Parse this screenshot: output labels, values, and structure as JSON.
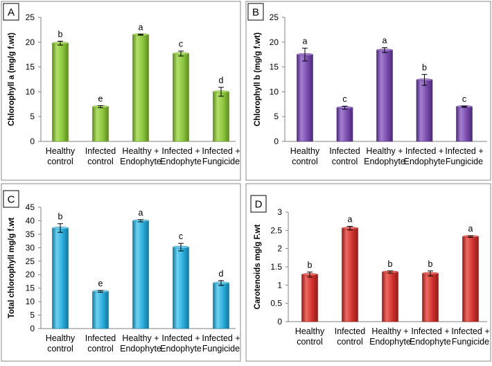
{
  "chart_data": [
    {
      "type": "bar",
      "panel_label": "A",
      "ylabel": "Chlorophyll a (mg/g f.wt)",
      "ylim": [
        0,
        25
      ],
      "yticks": [
        0,
        5,
        10,
        15,
        20,
        25
      ],
      "categories": [
        [
          "Healthy",
          "control"
        ],
        [
          "Infected",
          "control"
        ],
        [
          "Healthy +",
          "Endophyte"
        ],
        [
          "Infected +",
          "Endophyte"
        ],
        [
          "Infected +",
          "Fungicide"
        ]
      ],
      "values": [
        19.8,
        7.0,
        21.5,
        17.7,
        10.0
      ],
      "errors": [
        0.4,
        0.2,
        0.1,
        0.5,
        0.9
      ],
      "significance": [
        "b",
        "e",
        "a",
        "c",
        "d"
      ],
      "color": "#8cc63e",
      "color_dark": "#5d8b1f",
      "color_light": "#b3e06b"
    },
    {
      "type": "bar",
      "panel_label": "B",
      "ylabel": "Chlorophyll b (mg/g f.wt)",
      "ylim": [
        0,
        25
      ],
      "yticks": [
        0,
        5,
        10,
        15,
        20,
        25
      ],
      "categories": [
        [
          "Healthy",
          "control"
        ],
        [
          "Infected",
          "control"
        ],
        [
          "Healthy +",
          "Endophyte"
        ],
        [
          "Infected +",
          "Endophyte"
        ],
        [
          "Infected +",
          "Fungicide"
        ]
      ],
      "values": [
        17.5,
        6.8,
        18.4,
        12.4,
        7.0
      ],
      "errors": [
        1.3,
        0.3,
        0.5,
        1.1,
        0.1
      ],
      "significance": [
        "a",
        "c",
        "a",
        "b",
        "c"
      ],
      "color": "#7a4cae",
      "color_dark": "#4c2a78",
      "color_light": "#a57fd0"
    },
    {
      "type": "bar",
      "panel_label": "C",
      "ylabel": "Total chlorophyll  mg/g f.wt",
      "ylim": [
        0,
        45
      ],
      "yticks": [
        0,
        5,
        10,
        15,
        20,
        25,
        30,
        35,
        40,
        45
      ],
      "categories": [
        [
          "Healthy",
          "control"
        ],
        [
          "Infected",
          "control"
        ],
        [
          "Healthy +",
          "Endophyte"
        ],
        [
          "Infected +",
          "Endophyte"
        ],
        [
          "Infected +",
          "Fungicide"
        ]
      ],
      "values": [
        37.3,
        13.8,
        40.0,
        30.2,
        16.9
      ],
      "errors": [
        1.6,
        0.3,
        0.4,
        1.4,
        0.9
      ],
      "significance": [
        "b",
        "e",
        "a",
        "c",
        "d"
      ],
      "color": "#29aedc",
      "color_dark": "#15779c",
      "color_light": "#72d2f0"
    },
    {
      "type": "bar",
      "panel_label": "D",
      "ylabel": "Carotenoids mg/g F.wt",
      "ylim": [
        0,
        3
      ],
      "yticks": [
        0,
        0.5,
        1,
        1.5,
        2,
        2.5,
        3
      ],
      "categories": [
        [
          "Healthy",
          "control"
        ],
        [
          "Infected",
          "control"
        ],
        [
          "Healthy +",
          "Endophyte"
        ],
        [
          "Infected +",
          "Endophyte"
        ],
        [
          "Infected +",
          "Fungicide"
        ]
      ],
      "values": [
        1.29,
        2.56,
        1.36,
        1.32,
        2.33
      ],
      "errors": [
        0.07,
        0.05,
        0.03,
        0.07,
        0.02
      ],
      "significance": [
        "b",
        "a",
        "b",
        "b",
        "a"
      ],
      "color": "#d0322d",
      "color_dark": "#8f1d1a",
      "color_light": "#ee6b63"
    }
  ]
}
